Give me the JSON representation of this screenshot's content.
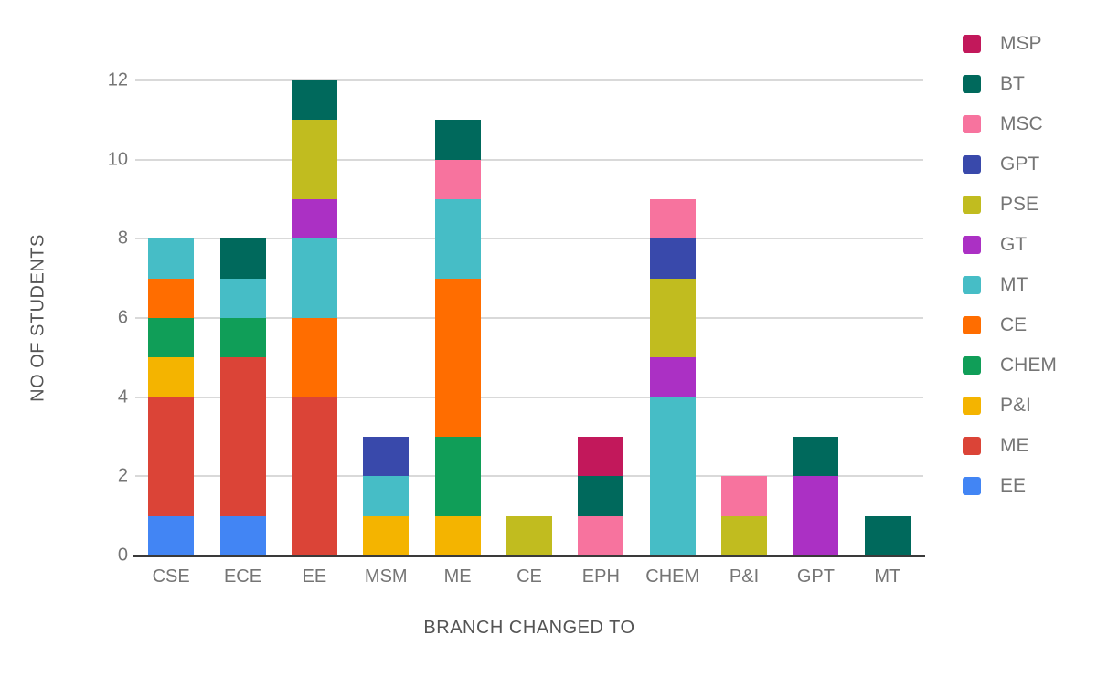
{
  "chart_data": {
    "type": "bar",
    "variant": "stacked-vertical",
    "title": "",
    "xlabel": "BRANCH CHANGED TO",
    "ylabel": "NO OF STUDENTS",
    "ylim": [
      0,
      12
    ],
    "yticks": [
      0,
      2,
      4,
      6,
      8,
      10,
      12
    ],
    "grid": "horizontal",
    "legend_position": "right",
    "categories": [
      "CSE",
      "ECE",
      "EE",
      "MSM",
      "ME",
      "CE",
      "EPH",
      "CHEM",
      "P&I",
      "GPT",
      "MT"
    ],
    "stack_note": "series listed in legend order (top of stack first); bars stack bottom-to-top in reverse of this list",
    "series": [
      {
        "name": "MSP",
        "color": "#C2185B",
        "values": [
          0,
          0,
          0,
          0,
          0,
          0,
          1,
          0,
          0,
          0,
          0
        ]
      },
      {
        "name": "BT",
        "color": "#00695C",
        "values": [
          0,
          1,
          1,
          0,
          1,
          0,
          1,
          0,
          0,
          1,
          1
        ]
      },
      {
        "name": "MSC",
        "color": "#F7739E",
        "values": [
          0,
          0,
          0,
          0,
          1,
          0,
          1,
          1,
          1,
          0,
          0
        ]
      },
      {
        "name": "GPT",
        "color": "#3949AB",
        "values": [
          0,
          0,
          0,
          1,
          0,
          0,
          0,
          1,
          0,
          0,
          0
        ]
      },
      {
        "name": "PSE",
        "color": "#C1BC1F",
        "values": [
          0,
          0,
          2,
          0,
          0,
          1,
          0,
          2,
          1,
          0,
          0
        ]
      },
      {
        "name": "GT",
        "color": "#AB30C4",
        "values": [
          0,
          0,
          1,
          0,
          0,
          0,
          0,
          1,
          0,
          2,
          0
        ]
      },
      {
        "name": "MT",
        "color": "#46BDC6",
        "values": [
          1,
          1,
          2,
          1,
          2,
          0,
          0,
          4,
          0,
          0,
          0
        ]
      },
      {
        "name": "CE",
        "color": "#FF6D00",
        "values": [
          1,
          0,
          2,
          0,
          4,
          0,
          0,
          0,
          0,
          0,
          0
        ]
      },
      {
        "name": "CHEM",
        "color": "#109E58",
        "values": [
          1,
          1,
          0,
          0,
          2,
          0,
          0,
          0,
          0,
          0,
          0
        ]
      },
      {
        "name": "P&I",
        "color": "#F4B400",
        "values": [
          1,
          0,
          0,
          1,
          1,
          0,
          0,
          0,
          0,
          0,
          0
        ]
      },
      {
        "name": "ME",
        "color": "#DB4437",
        "values": [
          3,
          4,
          4,
          0,
          0,
          0,
          0,
          0,
          0,
          0,
          0
        ]
      },
      {
        "name": "EE",
        "color": "#4285F4",
        "values": [
          1,
          1,
          0,
          0,
          0,
          0,
          0,
          0,
          0,
          0,
          0
        ]
      }
    ],
    "category_totals": {
      "CSE": 8,
      "ECE": 8,
      "EE": 12,
      "MSM": 3,
      "ME": 11,
      "CE": 1,
      "EPH": 3,
      "CHEM": 9,
      "P&I": 2,
      "GPT": 3,
      "MT": 1
    },
    "colors": {
      "grid": "#d9d9d9",
      "axis_line": "#3a3a3a",
      "tick_text": "#757575",
      "axis_title_text": "#545454",
      "legend_text": "#757575",
      "background": "#ffffff"
    }
  }
}
